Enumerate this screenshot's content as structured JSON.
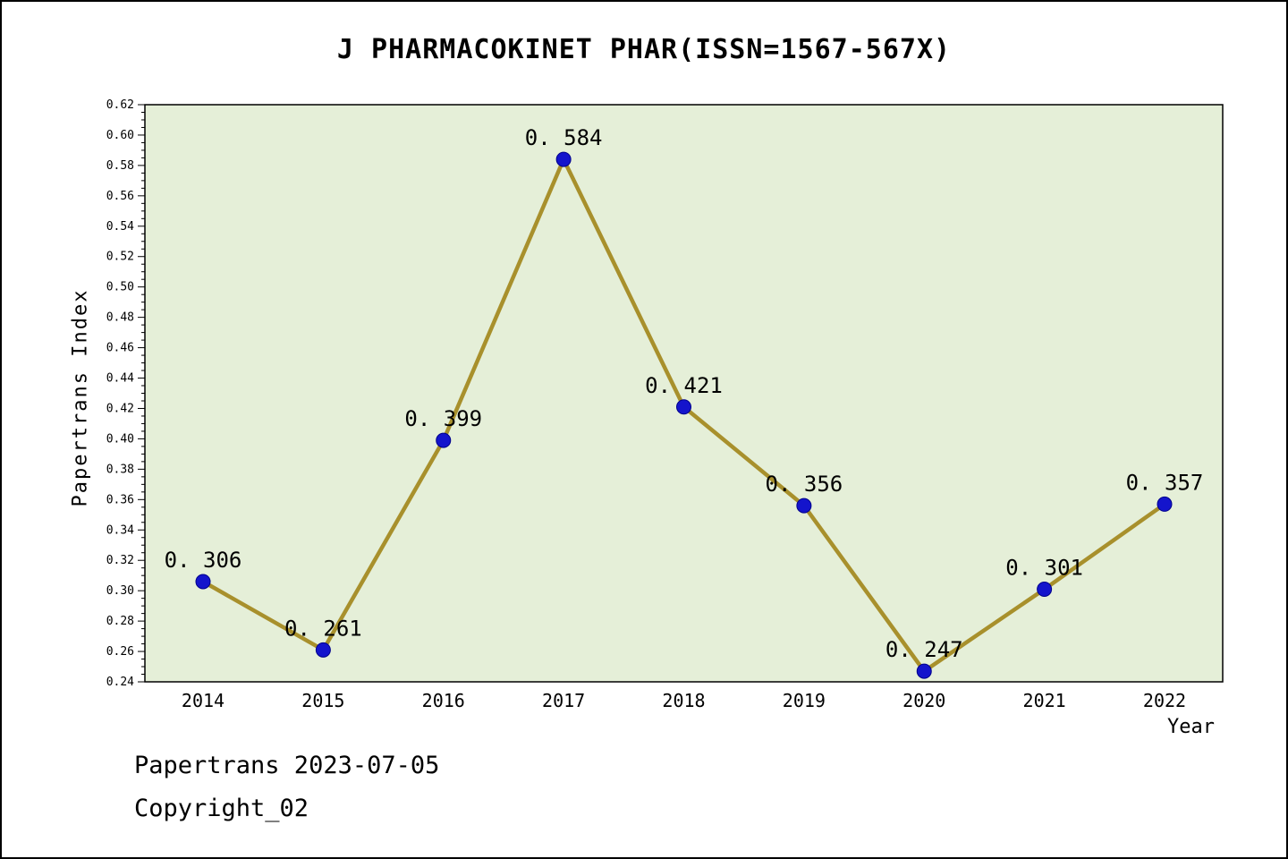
{
  "chart_data": {
    "type": "line",
    "title": "J PHARMACOKINET PHAR(ISSN=1567-567X)",
    "xlabel": "Year",
    "ylabel": "Papertrans Index",
    "x": [
      2014,
      2015,
      2016,
      2017,
      2018,
      2019,
      2020,
      2021,
      2022
    ],
    "values": [
      0.306,
      0.261,
      0.399,
      0.584,
      0.421,
      0.356,
      0.247,
      0.301,
      0.357
    ],
    "point_labels": [
      "0. 306",
      "0. 261",
      "0. 399",
      "0. 584",
      "0. 421",
      "0. 356",
      "0. 247",
      "0. 301",
      "0. 357"
    ],
    "ylim": [
      0.24,
      0.62
    ],
    "y_major_step": 0.02,
    "y_minor_step": 0.005,
    "grid": false,
    "legend": "none",
    "colors": {
      "line": "#a8902c",
      "marker": "#1414cc",
      "marker_edge": "#00008b",
      "plot_bg": "#e5efd8",
      "frame": "#000000",
      "text": "#000000"
    }
  },
  "footer": {
    "line1": "Papertrans 2023-07-05",
    "line2": "Copyright_02"
  }
}
